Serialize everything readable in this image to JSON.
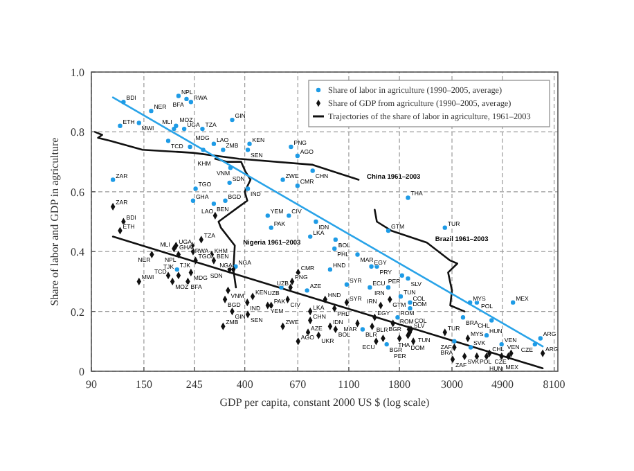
{
  "chart_data": {
    "type": "scatter",
    "xlabel": "GDP per capita, constant 2000 US $ (log scale)",
    "ylabel": "Share of labor and GDP in agriculture",
    "log": "x",
    "grid": true,
    "legend": "top right",
    "xlim": [
      90,
      8400
    ],
    "ylim": [
      0,
      1
    ],
    "xticks": [
      90,
      150,
      245,
      400,
      670,
      1100,
      1800,
      3000,
      4900,
      8100
    ],
    "yticks": [
      {
        "value": 0,
        "label": "0"
      },
      0.2,
      0.4,
      0.6,
      0.8,
      {
        "value": 1,
        "label": "1.0"
      }
    ],
    "series": [
      {
        "name": "Share of labor in agriculture (1990–2005, average)",
        "marker": "circle",
        "color": "#1e9be6",
        "x": [
          123,
          161,
          210,
          227,
          237,
          119,
          143,
          201,
          205,
          222,
          265,
          354,
          190,
          235,
          296,
          267,
          324,
          419,
          412,
          627,
          668,
          774,
          111,
          348,
          345,
          412,
          579,
          668,
          248,
          242,
          296,
          331,
          500,
          614,
          799,
          517,
          756,
          207,
          366,
          571,
          733,
          2800,
          1615,
          1956,
          967,
          957,
          1197,
          1370,
          1445,
          917,
          1078,
          1350,
          1845,
          1956,
          1615,
          1822,
          1996,
          1996,
          3577,
          3820,
          5430,
          3340,
          4410,
          4200,
          7090,
          6720,
          4860,
          3070,
          3600,
          1590,
          1258,
          1768
        ],
        "values": [
          0.9,
          0.87,
          0.92,
          0.91,
          0.9,
          0.82,
          0.83,
          0.81,
          0.82,
          0.81,
          0.81,
          0.84,
          0.77,
          0.75,
          0.76,
          0.74,
          0.74,
          0.76,
          0.74,
          0.75,
          0.72,
          0.67,
          0.64,
          0.68,
          0.63,
          0.61,
          0.64,
          0.62,
          0.61,
          0.57,
          0.56,
          0.57,
          0.52,
          0.52,
          0.5,
          0.48,
          0.45,
          0.34,
          0.35,
          0.28,
          0.27,
          0.48,
          0.47,
          0.58,
          0.44,
          0.41,
          0.39,
          0.35,
          0.35,
          0.34,
          0.29,
          0.28,
          0.32,
          0.31,
          0.28,
          0.25,
          0.23,
          0.21,
          0.23,
          0.23,
          0.23,
          0.18,
          0.17,
          0.12,
          0.11,
          0.09,
          0.09,
          0.1,
          0.08,
          0.09,
          0.14,
          0.18
        ]
      },
      {
        "name": "Share of GDP from agriculture (1990–2005, average)",
        "marker": "diamond",
        "color": "#111111",
        "x": [
          111,
          123,
          119,
          300,
          262,
          205,
          240,
          242,
          201,
          210,
          290,
          162,
          248,
          296,
          345,
          358,
          190,
          210,
          198,
          237,
          230,
          143,
          672,
          634,
          624,
          340,
          432,
          330,
          607,
          517,
          500,
          410,
          354,
          412,
          756,
          579,
          756,
          740,
          324,
          672,
          820,
          917,
          874,
          1078,
          957,
          1197,
          967,
          1380,
          1415,
          1500,
          1640,
          1435,
          1535,
          1690,
          1956,
          1975,
          1990,
          2014,
          1800,
          2060,
          2800,
          3500,
          3070,
          3020,
          3390,
          3820,
          4200,
          4320,
          4860,
          5190,
          5330,
          7250
        ],
        "values": [
          0.55,
          0.5,
          0.47,
          0.52,
          0.44,
          0.42,
          0.42,
          0.4,
          0.41,
          0.39,
          0.39,
          0.39,
          0.37,
          0.37,
          0.34,
          0.34,
          0.32,
          0.32,
          0.3,
          0.33,
          0.3,
          0.3,
          0.33,
          0.3,
          0.28,
          0.27,
          0.25,
          0.24,
          0.24,
          0.22,
          0.22,
          0.23,
          0.2,
          0.19,
          0.2,
          0.15,
          0.17,
          0.13,
          0.15,
          0.1,
          0.12,
          0.15,
          0.24,
          0.23,
          0.21,
          0.16,
          0.14,
          0.15,
          0.18,
          0.22,
          0.24,
          0.1,
          0.11,
          0.16,
          0.12,
          0.14,
          0.13,
          0.14,
          0.11,
          0.1,
          0.13,
          0.11,
          0.08,
          0.04,
          0.05,
          0.05,
          0.05,
          0.06,
          0.05,
          0.05,
          0.06,
          0.06
        ]
      },
      {
        "name": "Trajectories of the share of labor in agriculture, 1961–2003",
        "type": "line",
        "line_style": "solid",
        "color": "#111111",
        "x": [
          93,
          100,
          96,
          108,
          148,
          242,
          378,
          774,
          1210
        ],
        "values": [
          0.8,
          0.79,
          0.78,
          0.77,
          0.74,
          0.73,
          0.71,
          0.69,
          0.64
        ]
      },
      {
        "type": "line",
        "line_style": "solid",
        "color": "#111111",
        "x": [
          300,
          335,
          386,
          401,
          423,
          400,
          410,
          378,
          310,
          317,
          363,
          358,
          367
        ],
        "values": [
          0.71,
          0.7,
          0.7,
          0.67,
          0.64,
          0.6,
          0.57,
          0.55,
          0.5,
          0.48,
          0.42,
          0.34,
          0.28
        ]
      },
      {
        "type": "line",
        "line_style": "solid",
        "color": "#111111",
        "x": [
          1415,
          1445,
          1660,
          2350,
          2950,
          3160,
          2890,
          3000,
          2950,
          3390
        ],
        "values": [
          0.54,
          0.5,
          0.47,
          0.43,
          0.37,
          0.36,
          0.33,
          0.27,
          0.22,
          0.2
        ]
      },
      {
        "type": "line",
        "line_style": "solid",
        "color": "#29a3e8",
        "x": [
          111,
          7250
        ],
        "values": [
          0.915,
          0.083
        ]
      },
      {
        "type": "line",
        "line_style": "solid",
        "color": "#111111",
        "x": [
          111,
          7250
        ],
        "values": [
          0.45,
          0.01
        ]
      }
    ],
    "annotations": [
      {
        "text": "China 1961–2003",
        "x": 1210,
        "y": 0.64
      },
      {
        "text": "Nigeria 1961–2003",
        "x": 363,
        "y": 0.42
      },
      {
        "text": "Brazil 1961–2003",
        "x": 2350,
        "y": 0.43
      },
      {
        "text": "BDI",
        "x": 123,
        "y": 0.9
      },
      {
        "text": "NER",
        "x": 161,
        "y": 0.87
      },
      {
        "text": "NPL",
        "x": 210,
        "y": 0.92
      },
      {
        "text": "BFA",
        "x": 227,
        "y": 0.91
      },
      {
        "text": "RWA",
        "x": 237,
        "y": 0.9
      },
      {
        "text": "ETH",
        "x": 119,
        "y": 0.82
      },
      {
        "text": "MWI",
        "x": 143,
        "y": 0.83
      },
      {
        "text": "MOZ",
        "x": 201,
        "y": 0.81
      },
      {
        "text": "MLI",
        "x": 205,
        "y": 0.82
      },
      {
        "text": "UGA",
        "x": 222,
        "y": 0.81
      },
      {
        "text": "TZA",
        "x": 265,
        "y": 0.81
      },
      {
        "text": "GIN",
        "x": 354,
        "y": 0.84
      },
      {
        "text": "TCD",
        "x": 190,
        "y": 0.77
      },
      {
        "text": "MDG",
        "x": 235,
        "y": 0.75
      },
      {
        "text": "LAO",
        "x": 296,
        "y": 0.76
      },
      {
        "text": "KHM",
        "x": 267,
        "y": 0.74
      },
      {
        "text": "ZMB",
        "x": 324,
        "y": 0.74
      },
      {
        "text": "KEN",
        "x": 419,
        "y": 0.76
      },
      {
        "text": "SEN",
        "x": 412,
        "y": 0.74
      },
      {
        "text": "PNG",
        "x": 627,
        "y": 0.75
      },
      {
        "text": "AGO",
        "x": 668,
        "y": 0.72
      },
      {
        "text": "CHN",
        "x": 774,
        "y": 0.67
      },
      {
        "text": "ZAR",
        "x": 111,
        "y": 0.64
      },
      {
        "text": "VNM",
        "x": 348,
        "y": 0.68
      },
      {
        "text": "SDN",
        "x": 345,
        "y": 0.63
      },
      {
        "text": "IND",
        "x": 412,
        "y": 0.61
      },
      {
        "text": "ZWE",
        "x": 579,
        "y": 0.64
      },
      {
        "text": "CMR",
        "x": 668,
        "y": 0.62
      },
      {
        "text": "TGO",
        "x": 248,
        "y": 0.61
      },
      {
        "text": "GHA",
        "x": 242,
        "y": 0.57
      },
      {
        "text": "BEN",
        "x": 296,
        "y": 0.56
      },
      {
        "text": "BGD",
        "x": 331,
        "y": 0.57
      },
      {
        "text": "YEM",
        "x": 500,
        "y": 0.52
      },
      {
        "text": "CIV",
        "x": 614,
        "y": 0.52
      },
      {
        "text": "IDN",
        "x": 799,
        "y": 0.5
      },
      {
        "text": "PAK",
        "x": 517,
        "y": 0.48
      },
      {
        "text": "LKA",
        "x": 756,
        "y": 0.45
      },
      {
        "text": "TJK",
        "x": 207,
        "y": 0.34
      },
      {
        "text": "NGA",
        "x": 366,
        "y": 0.35
      },
      {
        "text": "UZB",
        "x": 571,
        "y": 0.28
      },
      {
        "text": "AZE",
        "x": 733,
        "y": 0.27
      },
      {
        "text": "TUR",
        "x": 2800,
        "y": 0.48
      },
      {
        "text": "GTM",
        "x": 1615,
        "y": 0.47
      },
      {
        "text": "THA",
        "x": 1956,
        "y": 0.58
      },
      {
        "text": "BOL",
        "x": 967,
        "y": 0.44
      },
      {
        "text": "PHL",
        "x": 957,
        "y": 0.41
      },
      {
        "text": "MAR",
        "x": 1197,
        "y": 0.39
      },
      {
        "text": "EGY",
        "x": 1370,
        "y": 0.35
      },
      {
        "text": "PRY",
        "x": 1445,
        "y": 0.35
      },
      {
        "text": "HND",
        "x": 917,
        "y": 0.34
      },
      {
        "text": "SYR",
        "x": 1078,
        "y": 0.29
      },
      {
        "text": "ECU",
        "x": 1350,
        "y": 0.28
      },
      {
        "text": "PER",
        "x": 1845,
        "y": 0.32
      },
      {
        "text": "SLV",
        "x": 1956,
        "y": 0.31
      },
      {
        "text": "IRN",
        "x": 1615,
        "y": 0.28
      },
      {
        "text": "TUN",
        "x": 1822,
        "y": 0.25
      },
      {
        "text": "COL",
        "x": 1996,
        "y": 0.23
      },
      {
        "text": "DOM",
        "x": 1996,
        "y": 0.21
      },
      {
        "text": "MYS",
        "x": 3577,
        "y": 0.23
      },
      {
        "text": "POL",
        "x": 3820,
        "y": 0.23
      },
      {
        "text": "MEX",
        "x": 5430,
        "y": 0.23
      },
      {
        "text": "BRA",
        "x": 3340,
        "y": 0.18
      },
      {
        "text": "CHL",
        "x": 4410,
        "y": 0.17
      },
      {
        "text": "HUN",
        "x": 4200,
        "y": 0.12
      },
      {
        "text": "ARG",
        "x": 7090,
        "y": 0.11
      },
      {
        "text": "CZE",
        "x": 6720,
        "y": 0.09
      },
      {
        "text": "VEN",
        "x": 4860,
        "y": 0.09
      },
      {
        "text": "ZAF",
        "x": 3070,
        "y": 0.1
      },
      {
        "text": "SVK",
        "x": 3600,
        "y": 0.08
      },
      {
        "text": "BGR",
        "x": 1590,
        "y": 0.09
      },
      {
        "text": "BLR",
        "x": 1258,
        "y": 0.14
      },
      {
        "text": "ROM",
        "x": 1768,
        "y": 0.18
      },
      {
        "text": "ZAR",
        "x": 111,
        "y": 0.55
      },
      {
        "text": "BDI",
        "x": 123,
        "y": 0.5
      },
      {
        "text": "ETH",
        "x": 119,
        "y": 0.47
      },
      {
        "text": "LAO",
        "x": 300,
        "y": 0.52
      },
      {
        "text": "TZA",
        "x": 262,
        "y": 0.44
      },
      {
        "text": "UGA",
        "x": 205,
        "y": 0.42
      },
      {
        "text": "RWA",
        "x": 240,
        "y": 0.42
      },
      {
        "text": "GHA",
        "x": 242,
        "y": 0.4
      },
      {
        "text": "MLI",
        "x": 201,
        "y": 0.41
      },
      {
        "text": "NPL",
        "x": 210,
        "y": 0.39
      },
      {
        "text": "KHM",
        "x": 290,
        "y": 0.39
      },
      {
        "text": "NER",
        "x": 162,
        "y": 0.39
      },
      {
        "text": "TGO",
        "x": 248,
        "y": 0.37
      },
      {
        "text": "BEN",
        "x": 296,
        "y": 0.37
      },
      {
        "text": "SDN",
        "x": 345,
        "y": 0.34
      },
      {
        "text": "NGA",
        "x": 358,
        "y": 0.34
      },
      {
        "text": "TCD",
        "x": 190,
        "y": 0.32
      },
      {
        "text": "TJK",
        "x": 210,
        "y": 0.32
      },
      {
        "text": "MOZ",
        "x": 198,
        "y": 0.3
      },
      {
        "text": "MDG",
        "x": 237,
        "y": 0.33
      },
      {
        "text": "BFA",
        "x": 230,
        "y": 0.3
      },
      {
        "text": "MWI",
        "x": 143,
        "y": 0.3
      },
      {
        "text": "CMR",
        "x": 672,
        "y": 0.33
      },
      {
        "text": "PNG",
        "x": 634,
        "y": 0.3
      },
      {
        "text": "UZB",
        "x": 624,
        "y": 0.28
      },
      {
        "text": "VNM",
        "x": 340,
        "y": 0.27
      },
      {
        "text": "KEN",
        "x": 432,
        "y": 0.25
      },
      {
        "text": "BGD",
        "x": 330,
        "y": 0.24
      },
      {
        "text": "CIV",
        "x": 607,
        "y": 0.24
      },
      {
        "text": "PAK",
        "x": 517,
        "y": 0.22
      },
      {
        "text": "YEM",
        "x": 500,
        "y": 0.22
      },
      {
        "text": "IND",
        "x": 410,
        "y": 0.23
      },
      {
        "text": "GIN",
        "x": 354,
        "y": 0.2
      },
      {
        "text": "SEN",
        "x": 412,
        "y": 0.19
      },
      {
        "text": "LKA",
        "x": 756,
        "y": 0.2
      },
      {
        "text": "ZWE",
        "x": 579,
        "y": 0.15
      },
      {
        "text": "CHN",
        "x": 756,
        "y": 0.17
      },
      {
        "text": "AZE",
        "x": 740,
        "y": 0.13
      },
      {
        "text": "ZMB",
        "x": 324,
        "y": 0.15
      },
      {
        "text": "AGO",
        "x": 672,
        "y": 0.1
      },
      {
        "text": "UKR",
        "x": 820,
        "y": 0.12
      },
      {
        "text": "IDN",
        "x": 917,
        "y": 0.15
      },
      {
        "text": "HND",
        "x": 874,
        "y": 0.24
      },
      {
        "text": "SYR",
        "x": 1078,
        "y": 0.23
      },
      {
        "text": "PHL",
        "x": 957,
        "y": 0.21
      },
      {
        "text": "MAR",
        "x": 1197,
        "y": 0.16
      },
      {
        "text": "BOL",
        "x": 967,
        "y": 0.14
      },
      {
        "text": "BLR",
        "x": 1380,
        "y": 0.15
      },
      {
        "text": "EGY",
        "x": 1415,
        "y": 0.18
      },
      {
        "text": "IRN",
        "x": 1500,
        "y": 0.22
      },
      {
        "text": "GTM",
        "x": 1640,
        "y": 0.24
      },
      {
        "text": "ECU",
        "x": 1435,
        "y": 0.1
      },
      {
        "text": "BGR",
        "x": 1535,
        "y": 0.11
      },
      {
        "text": "ROM",
        "x": 1690,
        "y": 0.16
      },
      {
        "text": "DOM",
        "x": 1956,
        "y": 0.12
      },
      {
        "text": "COL",
        "x": 1975,
        "y": 0.14
      },
      {
        "text": "TUN",
        "x": 1990,
        "y": 0.13
      },
      {
        "text": "SLV",
        "x": 2014,
        "y": 0.14
      },
      {
        "text": "PER",
        "x": 1800,
        "y": 0.11
      },
      {
        "text": "THA",
        "x": 2060,
        "y": 0.1
      },
      {
        "text": "TUR",
        "x": 2800,
        "y": 0.13
      },
      {
        "text": "MYS",
        "x": 3500,
        "y": 0.11
      },
      {
        "text": "BRA",
        "x": 3070,
        "y": 0.08
      },
      {
        "text": "ZAF",
        "x": 3020,
        "y": 0.04
      },
      {
        "text": "SVK",
        "x": 3390,
        "y": 0.05
      },
      {
        "text": "POL",
        "x": 3820,
        "y": 0.05
      },
      {
        "text": "HUN",
        "x": 4200,
        "y": 0.05
      },
      {
        "text": "CHL",
        "x": 4320,
        "y": 0.06
      },
      {
        "text": "VEN",
        "x": 4860,
        "y": 0.05
      },
      {
        "text": "CZE",
        "x": 5190,
        "y": 0.05
      },
      {
        "text": "MEX",
        "x": 5330,
        "y": 0.06
      },
      {
        "text": "ARG",
        "x": 7250,
        "y": 0.06
      }
    ]
  }
}
